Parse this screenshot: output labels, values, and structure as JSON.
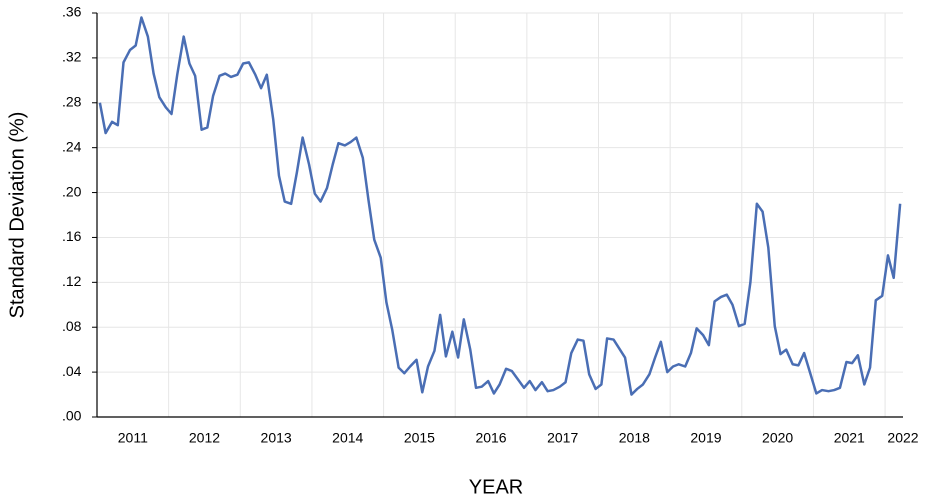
{
  "chart_data": {
    "type": "line",
    "x_label": "YEAR",
    "y_label": "Standard Deviation (%)",
    "xlim": [
      2011,
      2022.25
    ],
    "xticks": [
      2011,
      2012,
      2013,
      2014,
      2015,
      2016,
      2017,
      2018,
      2019,
      2020,
      2021,
      2022
    ],
    "ylim": [
      0,
      0.36
    ],
    "yticks": [
      {
        "value": 0,
        "label": ".00"
      },
      {
        "value": 0.04,
        "label": ".04"
      },
      {
        "value": 0.08,
        "label": ".08"
      },
      {
        "value": 0.12,
        "label": ".12"
      },
      {
        "value": 0.16,
        "label": ".16"
      },
      {
        "value": 0.2,
        "label": ".20"
      },
      {
        "value": 0.24,
        "label": ".24"
      },
      {
        "value": 0.28,
        "label": ".28"
      },
      {
        "value": 0.32,
        "label": ".32"
      },
      {
        "value": 0.36,
        "label": ".36"
      }
    ],
    "grid": true,
    "color": "#4a6eb4",
    "x": [
      2011.04,
      2011.12,
      2011.21,
      2011.29,
      2011.37,
      2011.46,
      2011.54,
      2011.62,
      2011.71,
      2011.79,
      2011.87,
      2011.96,
      2012.04,
      2012.12,
      2012.21,
      2012.29,
      2012.37,
      2012.46,
      2012.54,
      2012.62,
      2012.71,
      2012.79,
      2012.87,
      2012.96,
      2013.04,
      2013.12,
      2013.21,
      2013.29,
      2013.37,
      2013.46,
      2013.54,
      2013.62,
      2013.71,
      2013.79,
      2013.87,
      2013.96,
      2014.04,
      2014.12,
      2014.21,
      2014.29,
      2014.37,
      2014.46,
      2014.54,
      2014.62,
      2014.71,
      2014.79,
      2014.87,
      2014.96,
      2015.04,
      2015.12,
      2015.21,
      2015.29,
      2015.37,
      2015.46,
      2015.54,
      2015.62,
      2015.71,
      2015.79,
      2015.87,
      2015.96,
      2016.04,
      2016.12,
      2016.21,
      2016.29,
      2016.37,
      2016.46,
      2016.54,
      2016.62,
      2016.71,
      2016.79,
      2016.87,
      2016.96,
      2017.04,
      2017.12,
      2017.21,
      2017.29,
      2017.37,
      2017.46,
      2017.54,
      2017.62,
      2017.71,
      2017.79,
      2017.87,
      2017.96,
      2018.04,
      2018.12,
      2018.21,
      2018.29,
      2018.37,
      2018.46,
      2018.54,
      2018.62,
      2018.71,
      2018.79,
      2018.87,
      2018.96,
      2019.04,
      2019.12,
      2019.21,
      2019.29,
      2019.37,
      2019.46,
      2019.54,
      2019.62,
      2019.71,
      2019.79,
      2019.87,
      2019.96,
      2020.04,
      2020.12,
      2020.21,
      2020.29,
      2020.37,
      2020.46,
      2020.54,
      2020.62,
      2020.71,
      2020.79,
      2020.87,
      2020.96,
      2021.04,
      2021.12,
      2021.21,
      2021.29,
      2021.37,
      2021.46,
      2021.54,
      2021.62,
      2021.71,
      2021.79,
      2021.87,
      2021.96,
      2022.04,
      2022.12,
      2022.21
    ],
    "values": [
      0.28,
      0.253,
      0.263,
      0.26,
      0.316,
      0.327,
      0.331,
      0.356,
      0.339,
      0.306,
      0.285,
      0.276,
      0.27,
      0.305,
      0.339,
      0.315,
      0.304,
      0.256,
      0.258,
      0.286,
      0.304,
      0.306,
      0.303,
      0.305,
      0.315,
      0.316,
      0.305,
      0.293,
      0.305,
      0.265,
      0.215,
      0.192,
      0.19,
      0.218,
      0.249,
      0.225,
      0.199,
      0.192,
      0.204,
      0.225,
      0.244,
      0.242,
      0.245,
      0.249,
      0.231,
      0.193,
      0.158,
      0.142,
      0.102,
      0.078,
      0.044,
      0.039,
      0.045,
      0.051,
      0.022,
      0.045,
      0.059,
      0.091,
      0.054,
      0.076,
      0.053,
      0.087,
      0.06,
      0.026,
      0.027,
      0.032,
      0.021,
      0.029,
      0.043,
      0.041,
      0.034,
      0.026,
      0.032,
      0.024,
      0.031,
      0.023,
      0.024,
      0.027,
      0.031,
      0.057,
      0.069,
      0.068,
      0.038,
      0.025,
      0.029,
      0.07,
      0.069,
      0.061,
      0.053,
      0.02,
      0.025,
      0.029,
      0.038,
      0.053,
      0.067,
      0.04,
      0.045,
      0.047,
      0.045,
      0.057,
      0.079,
      0.073,
      0.064,
      0.103,
      0.107,
      0.109,
      0.1,
      0.081,
      0.083,
      0.12,
      0.19,
      0.183,
      0.151,
      0.081,
      0.056,
      0.06,
      0.047,
      0.046,
      0.057,
      0.038,
      0.021,
      0.024,
      0.023,
      0.024,
      0.026,
      0.049,
      0.048,
      0.055,
      0.029,
      0.044,
      0.104,
      0.108,
      0.144,
      0.124,
      0.19
    ]
  }
}
